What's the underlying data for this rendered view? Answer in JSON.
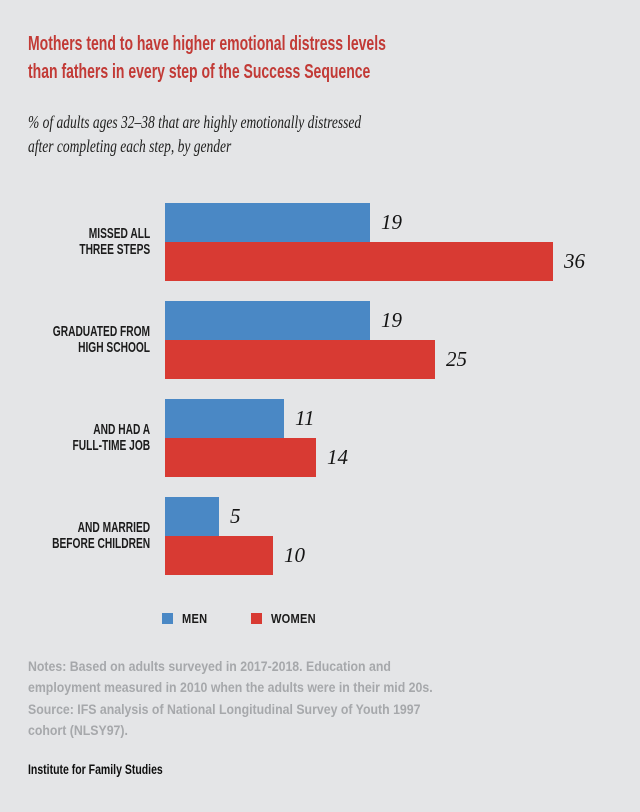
{
  "page": {
    "background_color": "#e4e5e7"
  },
  "header": {
    "title_lines": [
      "Mothers tend to have higher emotional distress levels",
      "than fathers in every step of the Success Sequence"
    ],
    "title_color": "#c23a36",
    "subtitle_lines": [
      "% of adults ages 32–38 that are highly emotionally distressed",
      "after completing each step, by gender"
    ]
  },
  "chart_data": {
    "type": "bar",
    "orientation": "horizontal",
    "categories": [
      "MISSED ALL THREE STEPS",
      "GRADUATED FROM HIGH SCHOOL",
      "AND HAD A FULL-TIME JOB",
      "AND MARRIED BEFORE CHILDREN"
    ],
    "category_lines": [
      [
        "MISSED ALL",
        "THREE STEPS"
      ],
      [
        "GRADUATED FROM",
        "HIGH SCHOOL"
      ],
      [
        "AND HAD A",
        "FULL-TIME JOB"
      ],
      [
        "AND MARRIED",
        "BEFORE CHILDREN"
      ]
    ],
    "series": [
      {
        "name": "MEN",
        "color": "#4a88c5",
        "values": [
          19,
          19,
          11,
          5
        ]
      },
      {
        "name": "WOMEN",
        "color": "#d83a33",
        "values": [
          36,
          25,
          14,
          10
        ]
      }
    ],
    "xlim": [
      0,
      40
    ],
    "grid": false,
    "value_labels_shown": true,
    "legend_position": "bottom"
  },
  "legend": {
    "items": [
      {
        "label": "MEN",
        "color": "#4a88c5"
      },
      {
        "label": "WOMEN",
        "color": "#d83a33"
      }
    ]
  },
  "notes": {
    "note_lines": [
      "Notes: Based on adults surveyed in 2017-2018. Education and",
      "employment measured in 2010 when the adults were in their mid 20s."
    ],
    "source_lines": [
      "Source: IFS analysis of National Longitudinal Survey of Youth 1997",
      "cohort (NLSY97)."
    ]
  },
  "footer": {
    "brand": "Institute for Family Studies"
  }
}
